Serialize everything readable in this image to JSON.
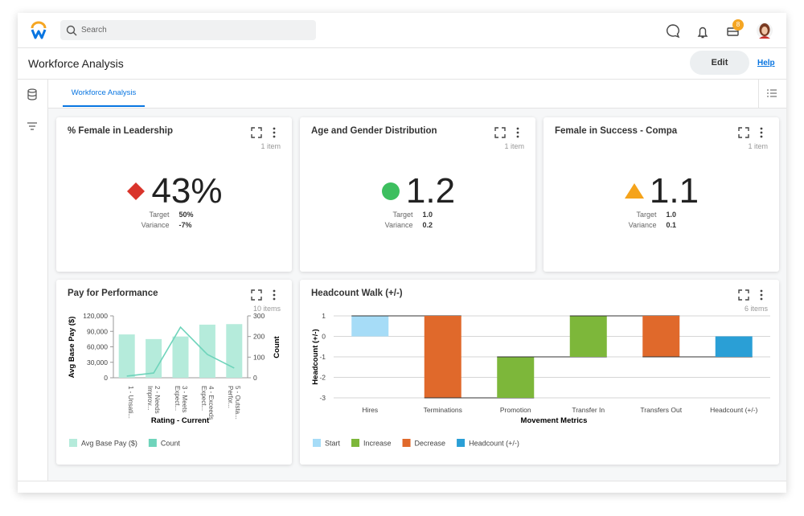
{
  "header": {
    "search_placeholder": "Search",
    "notification_badge": "8"
  },
  "page": {
    "title": "Workforce Analysis",
    "edit": "Edit",
    "help": "Help",
    "tab": "Workforce Analysis"
  },
  "kpis": [
    {
      "title": "% Female in Leadership",
      "items": "1 item",
      "value": "43%",
      "status": "diamond",
      "color": "#d9342b",
      "target_label": "Target",
      "target": "50%",
      "variance_label": "Variance",
      "variance": "-7%"
    },
    {
      "title": "Age and Gender Distribution",
      "items": "1 item",
      "value": "1.2",
      "status": "circle",
      "color": "#3dbf5f",
      "target_label": "Target",
      "target": "1.0",
      "variance_label": "Variance",
      "variance": "0.2"
    },
    {
      "title": "Female in Success - Compa",
      "items": "1 item",
      "value": "1.1",
      "status": "triangle",
      "color": "#f5a31a",
      "target_label": "Target",
      "target": "1.0",
      "variance_label": "Variance",
      "variance": "0.1"
    }
  ],
  "chart_data": [
    {
      "type": "combo",
      "title": "Pay for Performance",
      "items": "10 items",
      "categories": [
        "1 - Unsati...",
        "2 - Needs Improv...",
        "3 - Meets Expect...",
        "4 - Exceeds Expect...",
        "5 - Outsta... Perfor..."
      ],
      "series": [
        {
          "name": "Avg Base Pay ($)",
          "type": "bar",
          "color": "#b5ebdb",
          "values": [
            84000,
            75000,
            80000,
            103000,
            104000
          ]
        },
        {
          "name": "Count",
          "type": "line",
          "axis": "y2",
          "color": "#6fd4bb",
          "values": [
            8,
            23,
            245,
            113,
            47
          ]
        }
      ],
      "xlabel": "Rating - Current",
      "ylabel": "Avg Base Pay ($)",
      "y2label": "Count",
      "ylim": [
        0,
        120000
      ],
      "yticks": [
        0,
        {
          "value": 30000,
          "label": "30,000"
        },
        {
          "value": 60000,
          "label": "60,000"
        },
        {
          "value": 90000,
          "label": "90,000"
        },
        {
          "value": 120000,
          "label": "120,000"
        }
      ],
      "y2lim": [
        0,
        300
      ],
      "y2ticks": [
        0,
        100,
        200,
        300
      ],
      "grid": false
    },
    {
      "type": "waterfall",
      "title": "Headcount Walk (+/-)",
      "items": "6 items",
      "categories": [
        "Hires",
        "Terminations",
        "Promotion",
        "Transfer In",
        "Transfers Out",
        "Headcount (+/-)"
      ],
      "series": [
        {
          "name": "Start",
          "color": "#a6dcf7",
          "values": [
            1,
            null,
            null,
            null,
            null,
            null
          ]
        },
        {
          "name": "Increase",
          "color": "#7db73a",
          "values": [
            null,
            null,
            2,
            2,
            null,
            null
          ]
        },
        {
          "name": "Decrease",
          "color": "#e0692b",
          "values": [
            null,
            -4,
            null,
            null,
            -2,
            null
          ]
        },
        {
          "name": "Headcount (+/-)",
          "color": "#2a9fd6",
          "values": [
            null,
            null,
            null,
            null,
            null,
            -1
          ]
        }
      ],
      "xlabel": "Movement Metrics",
      "ylabel": "Headcount (+/-)",
      "ylim": [
        -3,
        1
      ],
      "yticks": [
        1,
        0,
        -1,
        -2,
        -3
      ],
      "grid": true
    }
  ]
}
